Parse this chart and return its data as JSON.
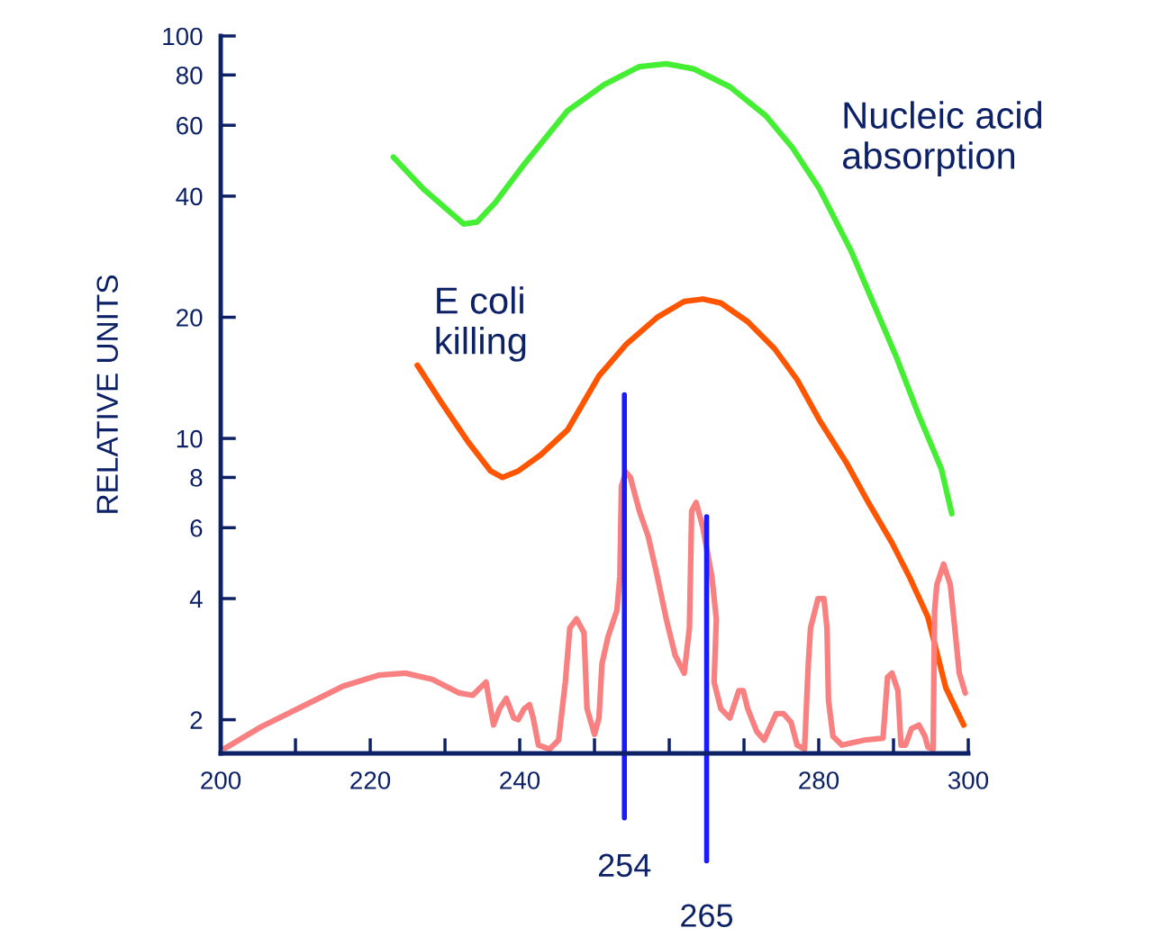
{
  "chart_data": {
    "type": "line",
    "ylabel": "RELATIVE UNITS",
    "log": "y",
    "xlim": [
      200,
      300
    ],
    "ylim": [
      1.65,
      100
    ],
    "xticks": [
      200,
      220,
      240,
      280,
      300
    ],
    "yticks": [
      2,
      4,
      6,
      8,
      10,
      20,
      40,
      60,
      80,
      100
    ],
    "series": [
      {
        "name": "Nucleic acid absorption",
        "color": "#44ee33",
        "x": [
          223.1,
          227.1,
          232.5,
          234.3,
          236.7,
          240.4,
          246.4,
          251.3,
          256.0,
          259.6,
          263.3,
          268.1,
          272.9,
          276.5,
          280.1,
          284.3,
          287.3,
          290.4,
          293.4,
          296.4,
          297.8
        ],
        "values": [
          50,
          41.7,
          34.1,
          34.5,
          38.5,
          47.5,
          65.2,
          75.7,
          83.9,
          85.3,
          82.8,
          74.8,
          63.4,
          52.7,
          41.7,
          29.3,
          21.7,
          15.9,
          11.4,
          8.4,
          6.5
        ]
      },
      {
        "name": "E coli killing",
        "color": "#ff5500",
        "x": [
          226.3,
          229.5,
          233.1,
          236.1,
          237.7,
          239.8,
          242.8,
          246.4,
          250.6,
          254.2,
          258.4,
          262.0,
          264.5,
          266.9,
          270.5,
          274.1,
          277.1,
          280.1,
          283.7,
          286.7,
          289.8,
          292.2,
          294.6,
          297.0,
          299.4
        ],
        "values": [
          15.2,
          12.3,
          9.8,
          8.3,
          8,
          8.3,
          9.1,
          10.5,
          14.3,
          17.1,
          20,
          21.9,
          22.2,
          21.7,
          19.5,
          16.7,
          14.0,
          11.1,
          8.7,
          6.9,
          5.5,
          4.5,
          3.6,
          2.4,
          1.94
        ]
      },
      {
        "color": "#f88080",
        "x": [
          200.6,
          205.4,
          211.4,
          216.3,
          221.1,
          224.7,
          228.3,
          231.9,
          233.7,
          234.9,
          235.5,
          236.1,
          236.5,
          237.3,
          238.2,
          239.2,
          239.8,
          240.6,
          241.3,
          241.8,
          242.5,
          244.0,
          245.2,
          246.1,
          246.7,
          247.6,
          248.6,
          249.0,
          250.0,
          250.6,
          251.0,
          251.8,
          253.0,
          253.4,
          253.6,
          254.2,
          254.8,
          256.0,
          257.2,
          258.4,
          259.6,
          260.8,
          262.0,
          262.7,
          263.0,
          263.6,
          264.5,
          265.7,
          266.3,
          266.0,
          266.9,
          268.1,
          269.3,
          269.9,
          270.5,
          271.7,
          272.7,
          273.5,
          274.3,
          275.3,
          276.3,
          277.1,
          278.1,
          278.6,
          278.9,
          279.9,
          280.7,
          281.1,
          281.3,
          281.9,
          283.1,
          286.1,
          288.6,
          289.2,
          289.8,
          290.6,
          291.0,
          291.6,
          292.4,
          293.4,
          294.2,
          294.6,
          295.3,
          295.5,
          295.8,
          296.7,
          297.6,
          298.2,
          298.8,
          299.6
        ],
        "values": [
          1.7,
          1.92,
          2.18,
          2.42,
          2.58,
          2.61,
          2.52,
          2.33,
          2.3,
          2.42,
          2.48,
          2.13,
          1.94,
          2.13,
          2.26,
          2.02,
          2.0,
          2.13,
          2.18,
          2.02,
          1.73,
          1.69,
          1.78,
          2.48,
          3.38,
          3.56,
          3.29,
          2.13,
          1.84,
          2.02,
          2.75,
          3.21,
          3.74,
          4.54,
          7.6,
          8.25,
          8,
          6.6,
          5.7,
          4.54,
          3.56,
          2.89,
          2.61,
          3.38,
          6.6,
          6.93,
          6,
          4.54,
          3.56,
          2.48,
          2.13,
          2.02,
          2.36,
          2.36,
          2.13,
          1.87,
          1.78,
          1.92,
          2.07,
          2.07,
          1.97,
          1.73,
          1.69,
          2.75,
          3.38,
          4,
          4.0,
          3.38,
          2.24,
          1.82,
          1.73,
          1.78,
          1.8,
          2.55,
          2.61,
          2.36,
          1.73,
          1.73,
          1.9,
          1.94,
          1.82,
          1.71,
          1.69,
          3.74,
          4.33,
          4.87,
          4.33,
          3.38,
          2.61,
          2.33
        ]
      }
    ],
    "ref_lines": [
      {
        "axis": "x",
        "value": 254,
        "label": "254",
        "color": "#1a1aff"
      },
      {
        "axis": "x",
        "value": 265,
        "label": "265",
        "color": "#1a1aff"
      }
    ]
  }
}
